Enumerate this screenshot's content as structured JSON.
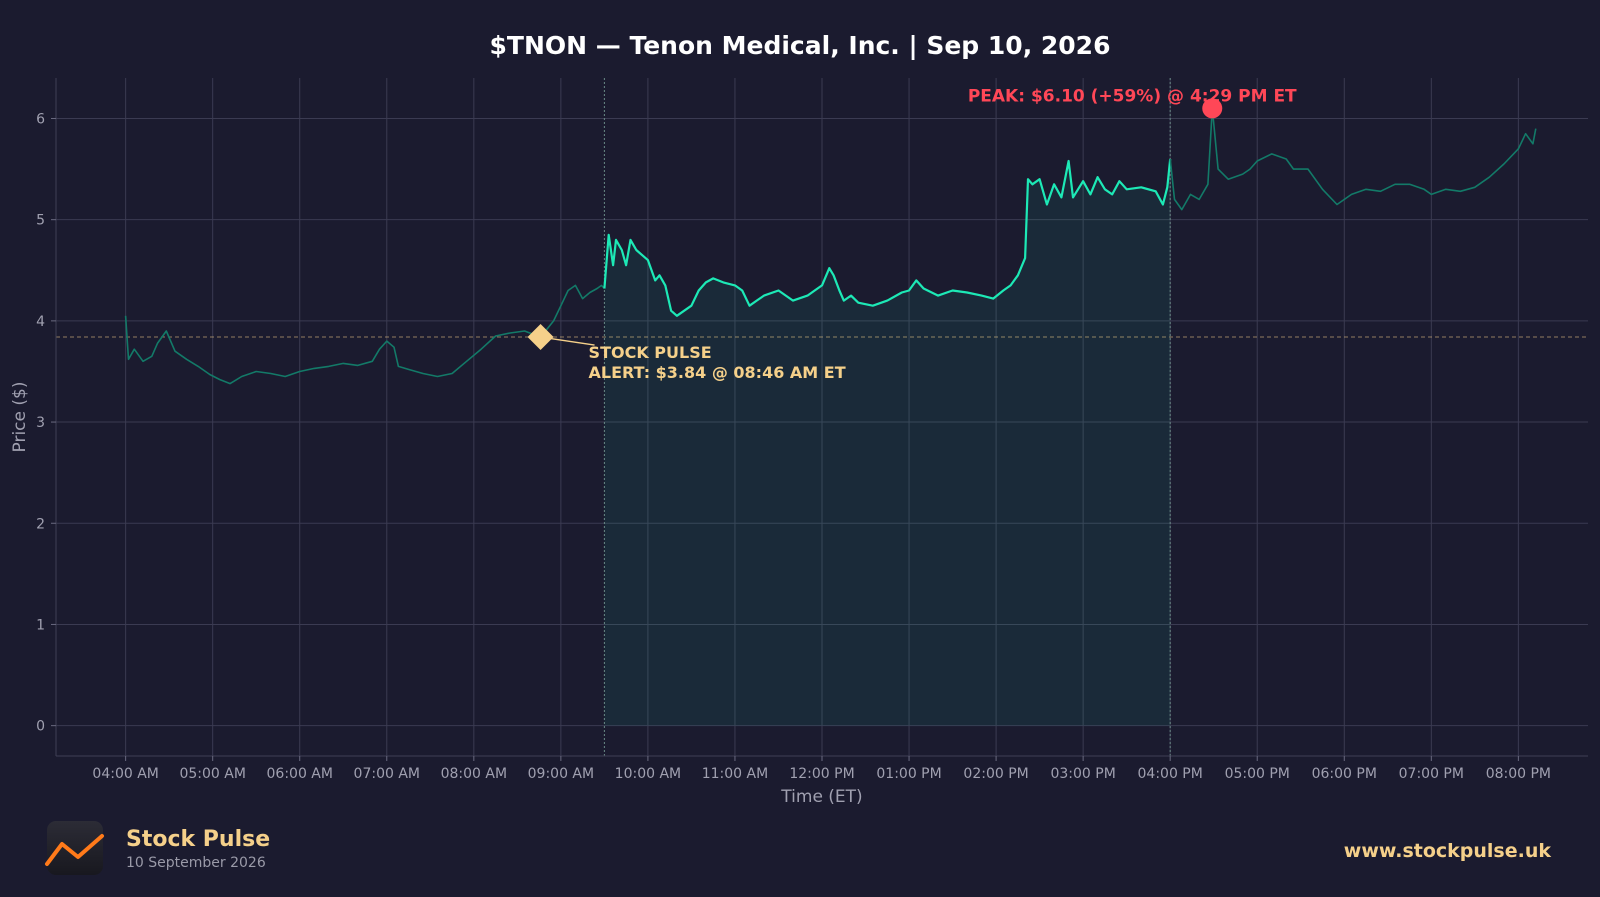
{
  "chart_data": {
    "type": "line",
    "title": "$TNON — Tenon Medical, Inc.  |  Sep 10, 2026",
    "xlabel": "Time (ET)",
    "ylabel": "Price ($)",
    "ylim": [
      -0.3,
      6.4
    ],
    "xlim": [
      "03:12 AM",
      "08:48 PM"
    ],
    "grid": true,
    "x_ticks": [
      "04:00 AM",
      "05:00 AM",
      "06:00 AM",
      "07:00 AM",
      "08:00 AM",
      "09:00 AM",
      "10:00 AM",
      "11:00 AM",
      "12:00 PM",
      "01:00 PM",
      "02:00 PM",
      "03:00 PM",
      "04:00 PM",
      "05:00 PM",
      "06:00 PM",
      "07:00 PM",
      "08:00 PM"
    ],
    "y_ticks": [
      0,
      1,
      2,
      3,
      4,
      5,
      6
    ],
    "regular_session": {
      "start": "09:30 AM",
      "end": "04:00 PM"
    },
    "series": [
      {
        "points": [
          [
            "04:00 AM",
            4.05
          ],
          [
            "04:02 AM",
            3.62
          ],
          [
            "04:06 AM",
            3.72
          ],
          [
            "04:12 AM",
            3.6
          ],
          [
            "04:18 AM",
            3.65
          ],
          [
            "04:22 AM",
            3.78
          ],
          [
            "04:28 AM",
            3.9
          ],
          [
            "04:34 AM",
            3.7
          ],
          [
            "04:42 AM",
            3.62
          ],
          [
            "04:50 AM",
            3.55
          ],
          [
            "04:58 AM",
            3.47
          ],
          [
            "05:05 AM",
            3.42
          ],
          [
            "05:12 AM",
            3.38
          ],
          [
            "05:20 AM",
            3.45
          ],
          [
            "05:30 AM",
            3.5
          ],
          [
            "05:40 AM",
            3.48
          ],
          [
            "05:50 AM",
            3.45
          ],
          [
            "06:00 AM",
            3.5
          ],
          [
            "06:10 AM",
            3.53
          ],
          [
            "06:20 AM",
            3.55
          ],
          [
            "06:30 AM",
            3.58
          ],
          [
            "06:40 AM",
            3.56
          ],
          [
            "06:50 AM",
            3.6
          ],
          [
            "06:55 AM",
            3.72
          ],
          [
            "07:00 AM",
            3.8
          ],
          [
            "07:05 AM",
            3.74
          ],
          [
            "07:08 AM",
            3.55
          ],
          [
            "07:15 AM",
            3.52
          ],
          [
            "07:25 AM",
            3.48
          ],
          [
            "07:35 AM",
            3.45
          ],
          [
            "07:45 AM",
            3.48
          ],
          [
            "07:55 AM",
            3.6
          ],
          [
            "08:05 AM",
            3.72
          ],
          [
            "08:15 AM",
            3.85
          ],
          [
            "08:25 AM",
            3.88
          ],
          [
            "08:35 AM",
            3.9
          ],
          [
            "08:46 AM",
            3.84
          ],
          [
            "08:55 AM",
            4.0
          ],
          [
            "09:00 AM",
            4.15
          ],
          [
            "09:05 AM",
            4.3
          ],
          [
            "09:10 AM",
            4.35
          ],
          [
            "09:15 AM",
            4.22
          ],
          [
            "09:20 AM",
            4.28
          ],
          [
            "09:25 AM",
            4.32
          ],
          [
            "09:28 AM",
            4.35
          ],
          [
            "09:30 AM",
            4.32
          ],
          [
            "09:33 AM",
            4.85
          ],
          [
            "09:36 AM",
            4.55
          ],
          [
            "09:38 AM",
            4.8
          ],
          [
            "09:42 AM",
            4.7
          ],
          [
            "09:45 AM",
            4.55
          ],
          [
            "09:48 AM",
            4.8
          ],
          [
            "09:52 AM",
            4.7
          ],
          [
            "09:56 AM",
            4.65
          ],
          [
            "10:00 AM",
            4.6
          ],
          [
            "10:05 AM",
            4.4
          ],
          [
            "10:08 AM",
            4.45
          ],
          [
            "10:12 AM",
            4.35
          ],
          [
            "10:16 AM",
            4.1
          ],
          [
            "10:20 AM",
            4.05
          ],
          [
            "10:25 AM",
            4.1
          ],
          [
            "10:30 AM",
            4.15
          ],
          [
            "10:35 AM",
            4.3
          ],
          [
            "10:40 AM",
            4.38
          ],
          [
            "10:45 AM",
            4.42
          ],
          [
            "10:52 AM",
            4.38
          ],
          [
            "11:00 AM",
            4.35
          ],
          [
            "11:05 AM",
            4.3
          ],
          [
            "11:10 AM",
            4.15
          ],
          [
            "11:15 AM",
            4.2
          ],
          [
            "11:20 AM",
            4.25
          ],
          [
            "11:30 AM",
            4.3
          ],
          [
            "11:40 AM",
            4.2
          ],
          [
            "11:50 AM",
            4.25
          ],
          [
            "11:55 AM",
            4.3
          ],
          [
            "12:00 PM",
            4.35
          ],
          [
            "12:05 PM",
            4.52
          ],
          [
            "12:08 PM",
            4.45
          ],
          [
            "12:12 PM",
            4.3
          ],
          [
            "12:15 PM",
            4.2
          ],
          [
            "12:20 PM",
            4.25
          ],
          [
            "12:25 PM",
            4.18
          ],
          [
            "12:35 PM",
            4.15
          ],
          [
            "12:45 PM",
            4.2
          ],
          [
            "12:55 PM",
            4.28
          ],
          [
            "01:00 PM",
            4.3
          ],
          [
            "01:05 PM",
            4.4
          ],
          [
            "01:10 PM",
            4.32
          ],
          [
            "01:20 PM",
            4.25
          ],
          [
            "01:30 PM",
            4.3
          ],
          [
            "01:40 PM",
            4.28
          ],
          [
            "01:50 PM",
            4.25
          ],
          [
            "01:58 PM",
            4.22
          ],
          [
            "02:05 PM",
            4.3
          ],
          [
            "02:10 PM",
            4.35
          ],
          [
            "02:15 PM",
            4.45
          ],
          [
            "02:20 PM",
            4.62
          ],
          [
            "02:22 PM",
            5.4
          ],
          [
            "02:25 PM",
            5.35
          ],
          [
            "02:30 PM",
            5.4
          ],
          [
            "02:35 PM",
            5.15
          ],
          [
            "02:40 PM",
            5.35
          ],
          [
            "02:45 PM",
            5.22
          ],
          [
            "02:50 PM",
            5.58
          ],
          [
            "02:53 PM",
            5.22
          ],
          [
            "03:00 PM",
            5.38
          ],
          [
            "03:05 PM",
            5.25
          ],
          [
            "03:10 PM",
            5.42
          ],
          [
            "03:15 PM",
            5.3
          ],
          [
            "03:20 PM",
            5.25
          ],
          [
            "03:25 PM",
            5.38
          ],
          [
            "03:30 PM",
            5.3
          ],
          [
            "03:40 PM",
            5.32
          ],
          [
            "03:50 PM",
            5.28
          ],
          [
            "03:55 PM",
            5.15
          ],
          [
            "03:58 PM",
            5.32
          ],
          [
            "04:00 PM",
            5.6
          ],
          [
            "04:03 PM",
            5.2
          ],
          [
            "04:08 PM",
            5.1
          ],
          [
            "04:14 PM",
            5.25
          ],
          [
            "04:20 PM",
            5.2
          ],
          [
            "04:26 PM",
            5.35
          ],
          [
            "04:29 PM",
            6.1
          ],
          [
            "04:33 PM",
            5.5
          ],
          [
            "04:40 PM",
            5.4
          ],
          [
            "04:50 PM",
            5.45
          ],
          [
            "04:55 PM",
            5.5
          ],
          [
            "05:00 PM",
            5.58
          ],
          [
            "05:10 PM",
            5.65
          ],
          [
            "05:20 PM",
            5.6
          ],
          [
            "05:25 PM",
            5.5
          ],
          [
            "05:35 PM",
            5.5
          ],
          [
            "05:45 PM",
            5.3
          ],
          [
            "05:55 PM",
            5.15
          ],
          [
            "06:05 PM",
            5.25
          ],
          [
            "06:15 PM",
            5.3
          ],
          [
            "06:25 PM",
            5.28
          ],
          [
            "06:35 PM",
            5.35
          ],
          [
            "06:45 PM",
            5.35
          ],
          [
            "06:55 PM",
            5.3
          ],
          [
            "07:00 PM",
            5.25
          ],
          [
            "07:10 PM",
            5.3
          ],
          [
            "07:20 PM",
            5.28
          ],
          [
            "07:30 PM",
            5.32
          ],
          [
            "07:40 PM",
            5.42
          ],
          [
            "07:50 PM",
            5.55
          ],
          [
            "08:00 PM",
            5.7
          ],
          [
            "08:05 PM",
            5.85
          ],
          [
            "08:10 PM",
            5.75
          ],
          [
            "08:12 PM",
            5.9
          ]
        ]
      }
    ],
    "annotations": {
      "peak": {
        "time": "04:29 PM",
        "price": 6.1,
        "label": "PEAK: $6.10 (+59%) @ 4:29 PM ET",
        "color": "#ff4757"
      },
      "alert": {
        "time": "08:46 AM",
        "price": 3.84,
        "line1": "STOCK PULSE",
        "line2": "ALERT: $3.84 @ 08:46 AM ET",
        "color": "#f5d08a"
      }
    },
    "colors": {
      "background": "#1b1b2f",
      "line_regular": "#1de9b6",
      "line_extended": "#137a68",
      "grid": "#3b3b52",
      "alert": "#f5d08a",
      "peak": "#ff4757"
    }
  },
  "branding": {
    "name": "Stock Pulse",
    "date": "10 September 2026",
    "website": "www.stockpulse.uk",
    "logo_icon": "chart-trend-icon"
  }
}
